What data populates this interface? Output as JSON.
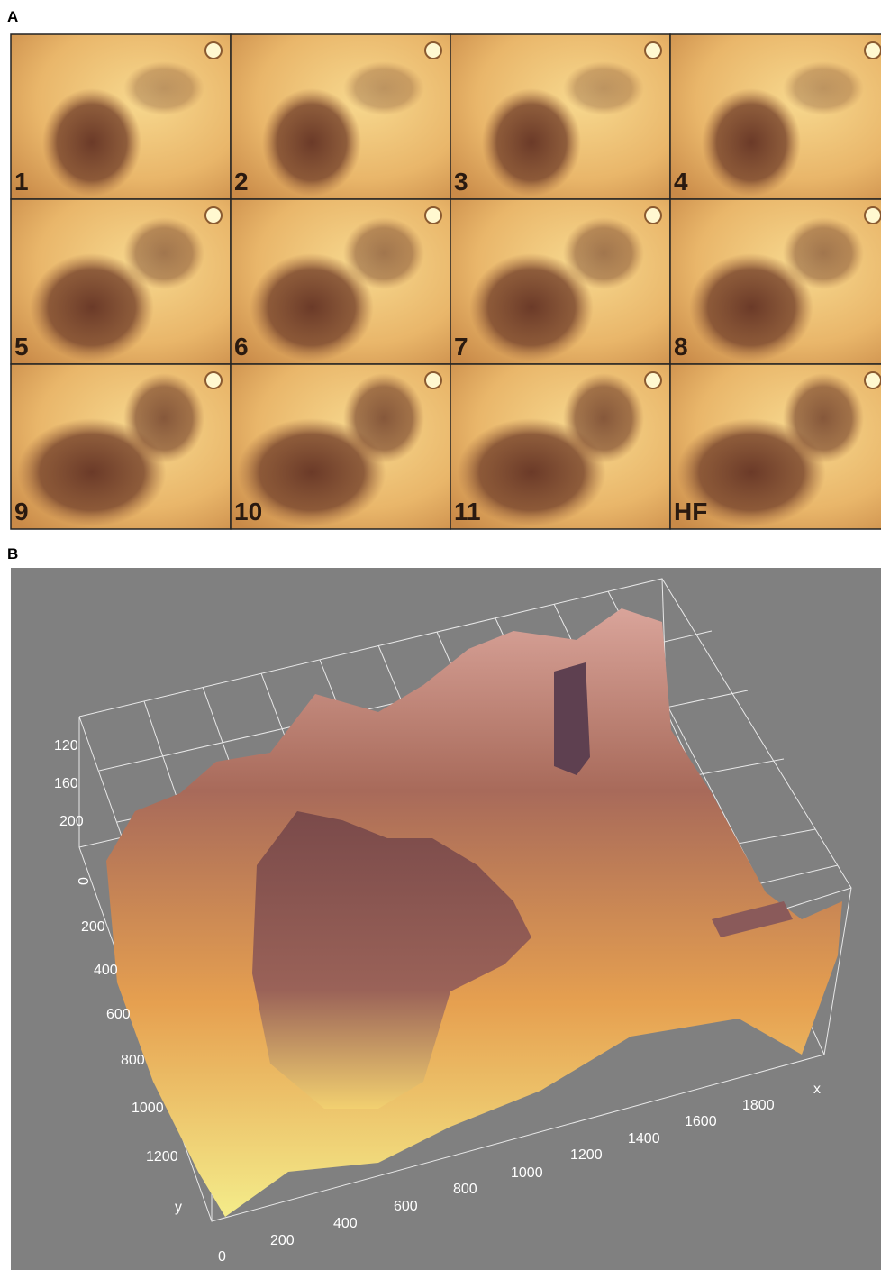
{
  "panel_a": {
    "label": "A",
    "tiles": [
      "1",
      "2",
      "3",
      "4",
      "5",
      "6",
      "7",
      "8",
      "9",
      "10",
      "11",
      "HF"
    ]
  },
  "panel_b": {
    "label": "B",
    "z_axis": {
      "ticks": [
        "120",
        "160",
        "200",
        "0"
      ]
    },
    "y_axis": {
      "label": "y",
      "ticks": [
        "200",
        "400",
        "600",
        "800",
        "1000",
        "1200"
      ]
    },
    "x_axis": {
      "label": "x",
      "ticks": [
        "0",
        "200",
        "400",
        "600",
        "800",
        "1000",
        "1200",
        "1400",
        "1600",
        "1800"
      ]
    }
  }
}
